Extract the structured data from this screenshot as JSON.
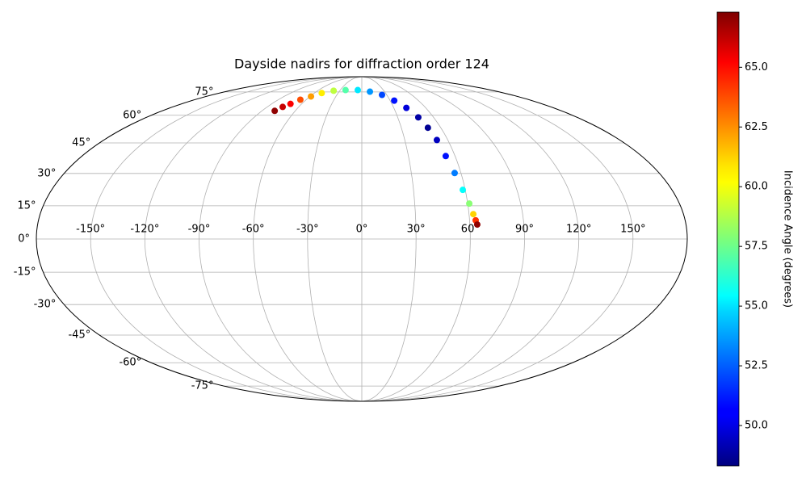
{
  "chart_data": {
    "type": "scatter",
    "projection": "mollweide",
    "title": "Dayside nadirs for diffraction order 124",
    "colorbar_label": "Incidence Angle (degrees)",
    "colormap": "jet",
    "grid": true,
    "x": [
      -78.5,
      -75.3,
      -71.2,
      -66.2,
      -58.8,
      -50.7,
      -38.3,
      -22.6,
      -5.6,
      10.7,
      24.3,
      34.3,
      41.8,
      47.2,
      50.2,
      52.4,
      54.0,
      56.2,
      58.6,
      60.9,
      62.4,
      63.4,
      64.1
    ],
    "y": [
      62.6,
      65.0,
      66.9,
      69.6,
      71.8,
      74.2,
      75.9,
      76.4,
      76.4,
      75.2,
      72.9,
      69.0,
      64.4,
      58.8,
      53.0,
      46.5,
      38.4,
      30.2,
      22.3,
      16.0,
      11.2,
      8.4,
      6.5
    ],
    "values": [
      67,
      66,
      65,
      63.5,
      62,
      60.5,
      59,
      57,
      55,
      53.5,
      52,
      51,
      50,
      49,
      48.7,
      49.5,
      51,
      53,
      55.5,
      58,
      61,
      64,
      67
    ],
    "xlim": [
      -180,
      180
    ],
    "ylim": [
      -90,
      90
    ],
    "xticks": [
      {
        "value": -150,
        "label": "-150°"
      },
      {
        "value": -120,
        "label": "-120°"
      },
      {
        "value": -90,
        "label": "-90°"
      },
      {
        "value": -60,
        "label": "-60°"
      },
      {
        "value": -30,
        "label": "-30°"
      },
      {
        "value": 0,
        "label": "0°"
      },
      {
        "value": 30,
        "label": "30°"
      },
      {
        "value": 60,
        "label": "60°"
      },
      {
        "value": 90,
        "label": "90°"
      },
      {
        "value": 120,
        "label": "120°"
      },
      {
        "value": 150,
        "label": "150°"
      }
    ],
    "yticks": [
      {
        "value": -75,
        "label": "-75°"
      },
      {
        "value": -60,
        "label": "-60°"
      },
      {
        "value": -45,
        "label": "-45°"
      },
      {
        "value": -30,
        "label": "-30°"
      },
      {
        "value": -15,
        "label": "-15°"
      },
      {
        "value": 0,
        "label": "0°"
      },
      {
        "value": 15,
        "label": "15°"
      },
      {
        "value": 30,
        "label": "30°"
      },
      {
        "value": 45,
        "label": "45°"
      },
      {
        "value": 60,
        "label": "60°"
      },
      {
        "value": 75,
        "label": "75°"
      }
    ],
    "clim": [
      48.31,
      67.31
    ],
    "cticks": [
      {
        "value": 50,
        "label": "50.0"
      },
      {
        "value": 52.5,
        "label": "52.5"
      },
      {
        "value": 55,
        "label": "55.0"
      },
      {
        "value": 57.5,
        "label": "57.5"
      },
      {
        "value": 60,
        "label": "60.0"
      },
      {
        "value": 62.5,
        "label": "62.5"
      },
      {
        "value": 65,
        "label": "65.0"
      }
    ]
  }
}
